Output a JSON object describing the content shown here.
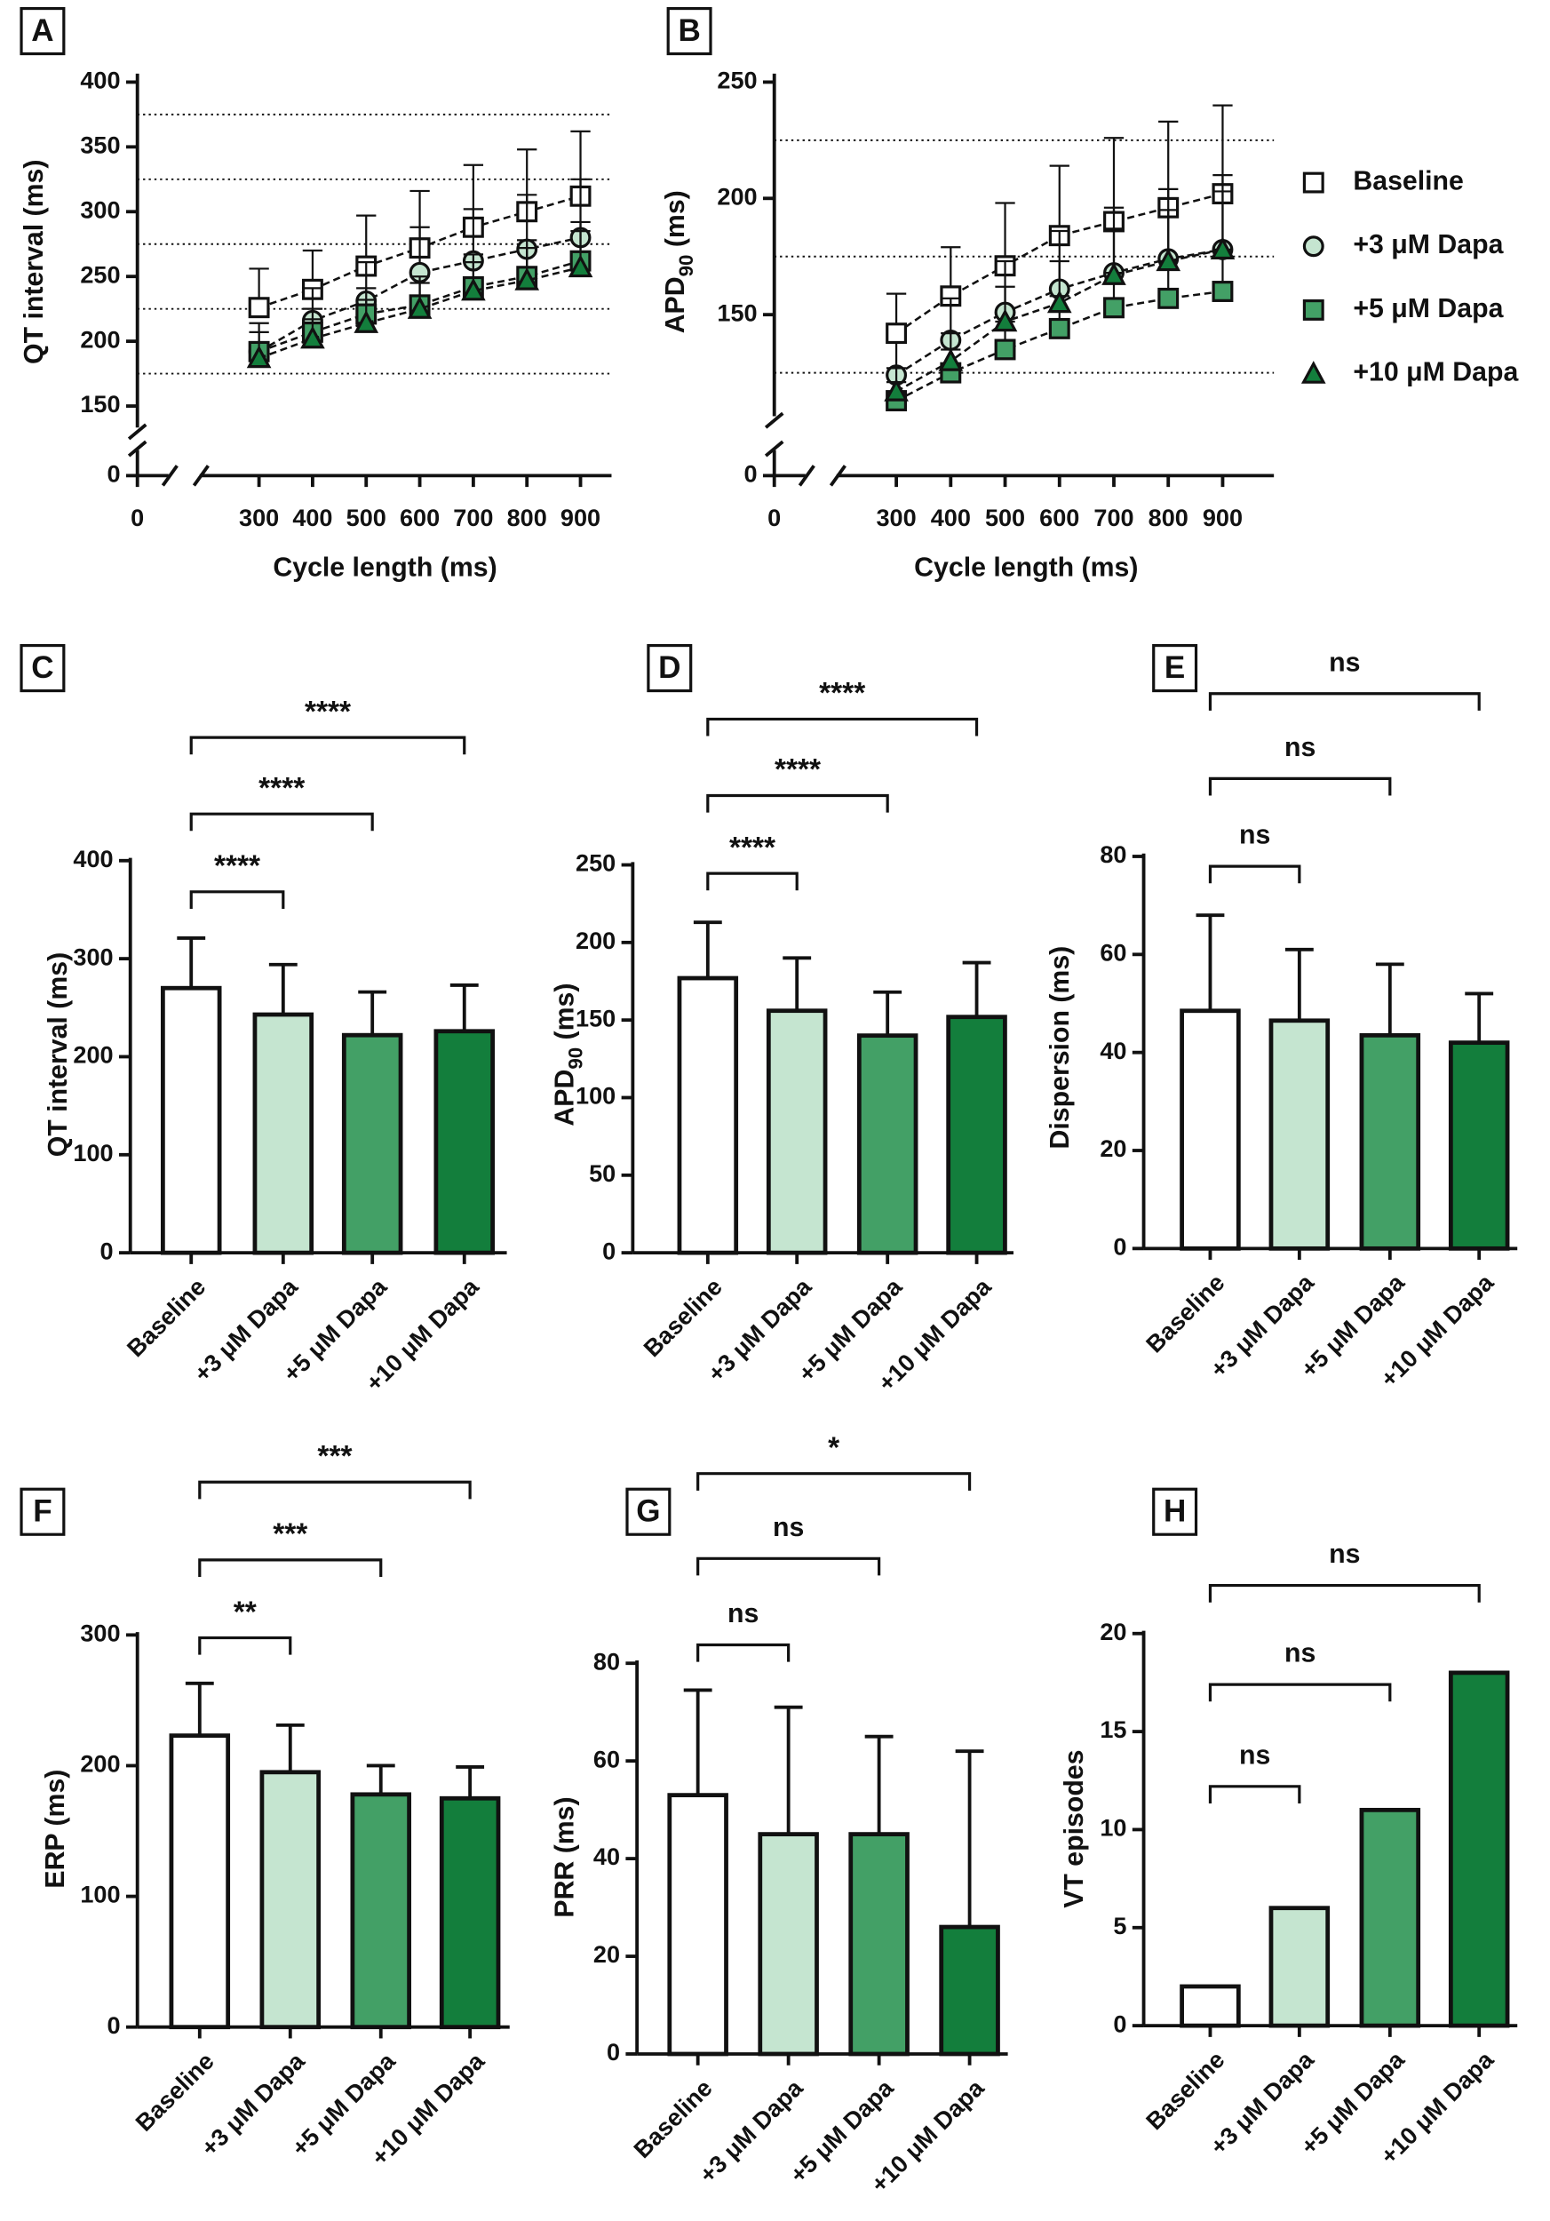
{
  "chart_data": [
    {
      "type": "line",
      "panel": "A",
      "ylabel": "QT interval (ms)",
      "xlabel": "Cycle length (ms)",
      "x": [
        300,
        400,
        500,
        600,
        700,
        800,
        900
      ],
      "xlim": [
        250,
        950
      ],
      "xticks": [
        0,
        300,
        400,
        500,
        600,
        700,
        800,
        900
      ],
      "ylim": [
        140,
        400
      ],
      "yticks": [
        0,
        150,
        200,
        250,
        300,
        350,
        400
      ],
      "hlines": [
        175,
        225,
        275,
        325,
        375
      ],
      "axis_break": true,
      "series": [
        {
          "color": "#ffffff",
          "marker": "square",
          "values": [
            226,
            240,
            258,
            272,
            288,
            300,
            312
          ],
          "errors": [
            30,
            30,
            39,
            44,
            48,
            48,
            50
          ]
        },
        {
          "color": "#c5e5d0",
          "marker": "circle",
          "values": [
            192,
            216,
            231,
            253,
            262,
            271,
            280
          ],
          "errors": [
            22,
            25,
            30,
            35,
            40,
            42,
            45
          ]
        },
        {
          "color": "#43a066",
          "marker": "square",
          "values": [
            192,
            207,
            221,
            228,
            242,
            250,
            262
          ],
          "errors": [
            15,
            18,
            20,
            22,
            25,
            28,
            30
          ]
        },
        {
          "color": "#137e3c",
          "marker": "triangle",
          "values": [
            187,
            202,
            214,
            225,
            239,
            247,
            257
          ],
          "errors": [
            12,
            15,
            18,
            20,
            22,
            25,
            28
          ]
        }
      ]
    },
    {
      "type": "line",
      "panel": "B",
      "ylabel": {
        "main": "APD",
        "sub": "90",
        "unit": " (ms)"
      },
      "xlabel": "Cycle length (ms)",
      "x": [
        300,
        400,
        500,
        600,
        700,
        800,
        900
      ],
      "xlim": [
        250,
        950
      ],
      "xticks": [
        0,
        300,
        400,
        500,
        600,
        700,
        800,
        900
      ],
      "ylim": [
        110,
        250
      ],
      "yticks": [
        0,
        150,
        200,
        250
      ],
      "hlines": [
        125,
        175,
        225
      ],
      "axis_break": true,
      "series": [
        {
          "name": "Baseline",
          "color": "#ffffff",
          "marker": "square",
          "values": [
            142,
            158,
            171,
            184,
            190,
            196,
            202
          ],
          "errors": [
            17,
            21,
            27,
            30,
            36,
            37,
            38
          ]
        },
        {
          "name": "+3 μM Dapa",
          "color": "#c5e5d0",
          "marker": "circle",
          "values": [
            124,
            139,
            151,
            161,
            168,
            174,
            178
          ],
          "errors": [
            14,
            18,
            22,
            25,
            28,
            30,
            32
          ]
        },
        {
          "name": "+5 μM Dapa",
          "color": "#43a066",
          "marker": "square",
          "values": [
            113,
            125,
            135,
            144,
            153,
            157,
            160
          ],
          "errors": [
            8,
            10,
            12,
            14,
            15,
            16,
            18
          ]
        },
        {
          "name": "+10 μM Dapa",
          "color": "#137e3c",
          "marker": "triangle",
          "values": [
            117,
            130,
            147,
            155,
            167,
            173,
            178
          ],
          "errors": [
            10,
            12,
            15,
            18,
            20,
            22,
            25
          ]
        }
      ]
    },
    {
      "type": "bar",
      "panel": "C",
      "ylabel": "QT interval (ms)",
      "categories": [
        "Baseline",
        "+3 μM Dapa",
        "+5 μM Dapa",
        "+10 μM Dapa"
      ],
      "colors": [
        "#ffffff",
        "#c5e5d0",
        "#43a066",
        "#137e3c"
      ],
      "values": [
        270,
        243,
        222,
        226
      ],
      "errors": [
        51,
        51,
        44,
        47
      ],
      "ylim": [
        0,
        400
      ],
      "yticks": [
        0,
        100,
        200,
        300,
        400
      ],
      "significance": [
        "****",
        "****",
        "****"
      ]
    },
    {
      "type": "bar",
      "panel": "D",
      "ylabel": {
        "main": "APD",
        "sub": "90",
        "unit": " (ms)"
      },
      "categories": [
        "Baseline",
        "+3 μM Dapa",
        "+5 μM Dapa",
        "+10 μM Dapa"
      ],
      "colors": [
        "#ffffff",
        "#c5e5d0",
        "#43a066",
        "#137e3c"
      ],
      "values": [
        177,
        156,
        140,
        152
      ],
      "errors": [
        36,
        34,
        28,
        35
      ],
      "ylim": [
        0,
        250
      ],
      "yticks": [
        0,
        50,
        100,
        150,
        200,
        250
      ],
      "significance": [
        "****",
        "****",
        "****"
      ]
    },
    {
      "type": "bar",
      "panel": "E",
      "ylabel": "Dispersion (ms)",
      "categories": [
        "Baseline",
        "+3 μM Dapa",
        "+5 μM Dapa",
        "+10 μM Dapa"
      ],
      "colors": [
        "#ffffff",
        "#c5e5d0",
        "#43a066",
        "#137e3c"
      ],
      "values": [
        48.5,
        46.5,
        43.5,
        42
      ],
      "errors": [
        19.5,
        14.5,
        14.5,
        10
      ],
      "ylim": [
        0,
        80
      ],
      "yticks": [
        0,
        20,
        40,
        60,
        80
      ],
      "significance": [
        "ns",
        "ns",
        "ns"
      ]
    },
    {
      "type": "bar",
      "panel": "F",
      "ylabel": "ERP (ms)",
      "categories": [
        "Baseline",
        "+3 μM Dapa",
        "+5 μM Dapa",
        "+10 μM Dapa"
      ],
      "colors": [
        "#ffffff",
        "#c5e5d0",
        "#43a066",
        "#137e3c"
      ],
      "values": [
        223,
        195,
        178,
        175
      ],
      "errors": [
        40,
        36,
        22,
        24
      ],
      "ylim": [
        0,
        300
      ],
      "yticks": [
        0,
        100,
        200,
        300
      ],
      "significance": [
        "**",
        "***",
        "***"
      ]
    },
    {
      "type": "bar",
      "panel": "G",
      "ylabel": "PRR (ms)",
      "categories": [
        "Baseline",
        "+3 μM Dapa",
        "+5 μM Dapa",
        "+10 μM Dapa"
      ],
      "colors": [
        "#ffffff",
        "#c5e5d0",
        "#43a066",
        "#137e3c"
      ],
      "values": [
        53,
        45,
        45,
        26
      ],
      "errors": [
        21.5,
        26,
        20,
        36
      ],
      "ylim": [
        0,
        80
      ],
      "yticks": [
        0,
        20,
        40,
        60,
        80
      ],
      "significance": [
        "ns",
        "ns",
        "*"
      ]
    },
    {
      "type": "bar",
      "panel": "H",
      "ylabel": "VT episodes",
      "categories": [
        "Baseline",
        "+3 μM Dapa",
        "+5 μM Dapa",
        "+10 μM Dapa"
      ],
      "colors": [
        "#ffffff",
        "#c5e5d0",
        "#43a066",
        "#137e3c"
      ],
      "values": [
        2,
        6,
        11,
        18
      ],
      "ylim": [
        0,
        20
      ],
      "yticks": [
        0,
        5,
        10,
        15,
        20
      ],
      "significance": [
        "ns",
        "ns",
        "ns"
      ]
    }
  ]
}
